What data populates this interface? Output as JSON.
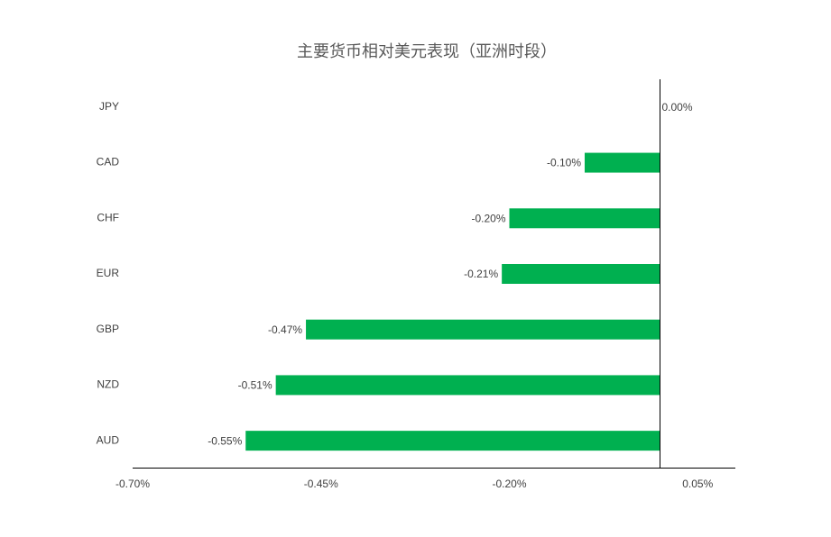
{
  "chart_data": {
    "type": "barh",
    "title": "主要货币相对美元表现（亚洲时段）",
    "categories": [
      "JPY",
      "CAD",
      "CHF",
      "EUR",
      "GBP",
      "NZD",
      "AUD"
    ],
    "values": [
      0,
      -0.1,
      -0.2,
      -0.21,
      -0.47,
      -0.51,
      -0.55
    ],
    "value_labels": [
      "0.00%",
      "-0.10%",
      "-0.20%",
      "-0.21%",
      "-0.47%",
      "-0.51%",
      "-0.55%"
    ],
    "color": "#00b050",
    "xlim": [
      -0.7,
      0.1
    ],
    "xticks": [
      {
        "value": -0.7,
        "label": "-0.70%"
      },
      {
        "value": -0.45,
        "label": "-0.45%"
      },
      {
        "value": -0.2,
        "label": "-0.20%"
      },
      {
        "value": 0.05,
        "label": "0.05%"
      }
    ]
  }
}
